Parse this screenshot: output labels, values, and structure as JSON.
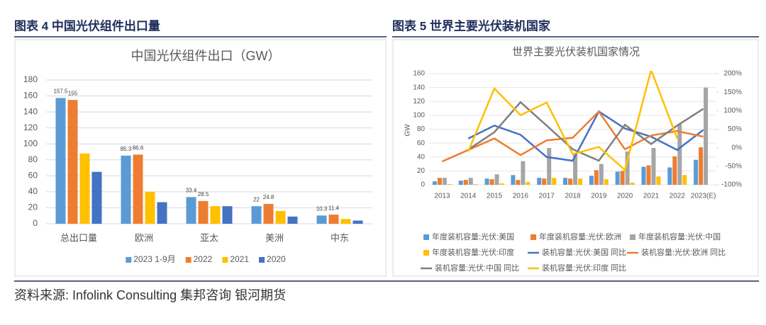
{
  "headings": [
    "图表 4 中国光伏组件出口量",
    "图表 5 世界主要光伏装机国家"
  ],
  "source": "资料来源: Infolink Consulting 集邦咨询 银河期货",
  "chart_data": [
    {
      "type": "bar",
      "title": "中国光伏组件出口（GW）",
      "categories": [
        "总出口量",
        "欧洲",
        "亚太",
        "美洲",
        "中东"
      ],
      "series": [
        {
          "name": "2023 1-9月",
          "color": "#5b9bd5",
          "values": [
            157.5,
            85.3,
            33.4,
            22,
            10.3
          ],
          "data_labels": true
        },
        {
          "name": "2022",
          "color": "#ed7d31",
          "values": [
            155,
            86.6,
            28.5,
            24.8,
            11.4
          ],
          "data_labels": true
        },
        {
          "name": "2021",
          "color": "#ffc000",
          "values": [
            88,
            40,
            22,
            16,
            6
          ]
        },
        {
          "name": "2020",
          "color": "#4472c4",
          "values": [
            65,
            27,
            22,
            9,
            4
          ]
        }
      ],
      "ylim": [
        0,
        180
      ],
      "yticks": [
        0,
        20,
        40,
        60,
        80,
        100,
        120,
        140,
        160,
        180
      ],
      "grid": true,
      "legend": "bottom"
    },
    {
      "type": "combo",
      "title": "世界主要光伏装机国家情况",
      "y_label": "GW",
      "categories": [
        "2013",
        "2014",
        "2015",
        "2016",
        "2017",
        "2018",
        "2019",
        "2020",
        "2021",
        "2022",
        "2023(E)"
      ],
      "series": [
        {
          "name": "年度装机容量:光伏:美国",
          "kind": "bar",
          "color": "#5b9bd5",
          "values": [
            5,
            6,
            9,
            14,
            10,
            10,
            13,
            19,
            26,
            25,
            36
          ]
        },
        {
          "name": "年度装机容量:光伏:欧洲",
          "kind": "bar",
          "color": "#ed7d31",
          "values": [
            10,
            7,
            8,
            7,
            9,
            9,
            21,
            20,
            28,
            41,
            54
          ]
        },
        {
          "name": "年度装机容量:光伏:中国",
          "kind": "bar",
          "color": "#a5a5a5",
          "values": [
            10,
            10,
            15,
            34,
            53,
            44,
            30,
            48,
            53,
            87,
            140
          ]
        },
        {
          "name": "年度装机容量:光伏:印度",
          "kind": "bar",
          "color": "#ffc000",
          "values": [
            1,
            1,
            2,
            4,
            10,
            9,
            8,
            3,
            12,
            14,
            null
          ]
        },
        {
          "name": "装机容量:光伏:美国 同比",
          "kind": "line",
          "axis": "y2",
          "color": "#4472c4",
          "values": [
            null,
            25,
            60,
            35,
            -25,
            -35,
            98,
            52,
            30,
            -6,
            48
          ]
        },
        {
          "name": "装机容量:光伏:欧洲 同比",
          "kind": "line",
          "axis": "y2",
          "color": "#ed7d31",
          "values": [
            -37,
            -6,
            25,
            -20,
            20,
            27,
            98,
            -4,
            33,
            45,
            30
          ]
        },
        {
          "name": "装机容量:光伏:中国 同比",
          "kind": "line",
          "axis": "y2",
          "color": "#7f7f7f",
          "values": [
            null,
            -5,
            42,
            123,
            60,
            -4,
            -35,
            62,
            10,
            60,
            105
          ]
        },
        {
          "name": "装机容量:光伏:印度 同比",
          "kind": "line",
          "axis": "y2",
          "color": "#ffc000",
          "values": [
            null,
            -10,
            160,
            88,
            122,
            -17,
            2,
            -60,
            210,
            25,
            null
          ]
        }
      ],
      "ylim": [
        0,
        160
      ],
      "yticks": [
        0,
        20,
        40,
        60,
        80,
        100,
        120,
        140,
        160
      ],
      "y2lim": [
        -100,
        200
      ],
      "y2ticks": [
        {
          "value": -100,
          "label": "-100%"
        },
        {
          "value": -50,
          "label": "-50%"
        },
        {
          "value": 0,
          "label": "0%"
        },
        {
          "value": 50,
          "label": "50%"
        },
        {
          "value": 100,
          "label": "100%"
        },
        {
          "value": 150,
          "label": "150%"
        },
        {
          "value": 200,
          "label": "200%"
        }
      ],
      "grid": true,
      "legend": "bottom"
    }
  ]
}
